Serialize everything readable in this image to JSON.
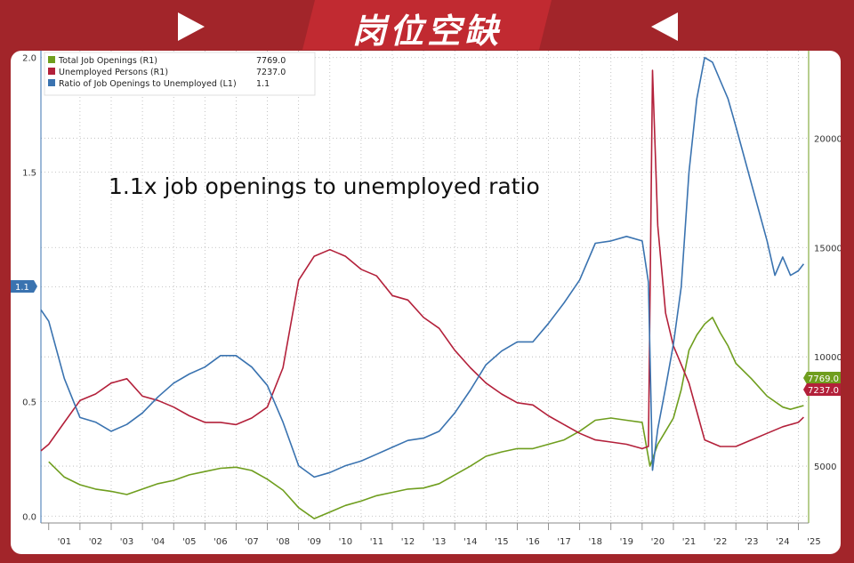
{
  "banner": {
    "title": "岗位空缺"
  },
  "annotation": "1.1x job openings to unemployed ratio",
  "legend": [
    {
      "label": "Total Job Openings (R1)",
      "value": "7769.0",
      "color": "#6f9e1e"
    },
    {
      "label": "Unemployed Persons (R1)",
      "value": "7237.0",
      "color": "#b3203a"
    },
    {
      "label": "Ratio of Job Openings to Unemployed (L1)",
      "value": "1.1",
      "color": "#3a73b0"
    }
  ],
  "value_flags": {
    "ratio": "1.1",
    "openings": "7769.0",
    "unemployed": "7237.0"
  },
  "chart_data": {
    "type": "line",
    "x_axis": {
      "range": [
        2000.75,
        2025.33
      ],
      "tick_labels": [
        "'01",
        "'02",
        "'03",
        "'04",
        "'05",
        "'06",
        "'07",
        "'08",
        "'09",
        "'10",
        "'11",
        "'12",
        "'13",
        "'14",
        "'15",
        "'16",
        "'17",
        "'18",
        "'19",
        "'20",
        "'21",
        "'22",
        "'23",
        "'24",
        "'25"
      ]
    },
    "y_left": {
      "range": [
        -0.03,
        2.03
      ],
      "ticks": [
        "0.0",
        "0.5",
        "1.0",
        "1.5",
        "2.0"
      ]
    },
    "y_right": {
      "range": [
        2400,
        24000
      ],
      "ticks": [
        "5000",
        "10000",
        "15000",
        "20000"
      ]
    },
    "grid": true,
    "legend_position": "top-left",
    "series": [
      {
        "name": "Total Job Openings (R1)",
        "axis": "right",
        "color": "#6f9e1e",
        "points": [
          [
            2001.0,
            5200
          ],
          [
            2001.5,
            4500
          ],
          [
            2002.0,
            4150
          ],
          [
            2002.5,
            3950
          ],
          [
            2003.0,
            3850
          ],
          [
            2003.5,
            3700
          ],
          [
            2004.0,
            3950
          ],
          [
            2004.5,
            4200
          ],
          [
            2005.0,
            4350
          ],
          [
            2005.5,
            4600
          ],
          [
            2006.0,
            4750
          ],
          [
            2006.5,
            4900
          ],
          [
            2007.0,
            4950
          ],
          [
            2007.5,
            4800
          ],
          [
            2008.0,
            4400
          ],
          [
            2008.5,
            3900
          ],
          [
            2009.0,
            3100
          ],
          [
            2009.5,
            2600
          ],
          [
            2010.0,
            2900
          ],
          [
            2010.5,
            3200
          ],
          [
            2011.0,
            3400
          ],
          [
            2011.5,
            3650
          ],
          [
            2012.0,
            3800
          ],
          [
            2012.5,
            3950
          ],
          [
            2013.0,
            4000
          ],
          [
            2013.5,
            4200
          ],
          [
            2014.0,
            4600
          ],
          [
            2014.5,
            5000
          ],
          [
            2015.0,
            5450
          ],
          [
            2015.5,
            5650
          ],
          [
            2016.0,
            5800
          ],
          [
            2016.5,
            5800
          ],
          [
            2017.0,
            6000
          ],
          [
            2017.5,
            6200
          ],
          [
            2018.0,
            6600
          ],
          [
            2018.5,
            7100
          ],
          [
            2019.0,
            7200
          ],
          [
            2019.5,
            7100
          ],
          [
            2020.0,
            7000
          ],
          [
            2020.25,
            5000
          ],
          [
            2020.5,
            6000
          ],
          [
            2020.75,
            6600
          ],
          [
            2021.0,
            7200
          ],
          [
            2021.25,
            8500
          ],
          [
            2021.5,
            10300
          ],
          [
            2021.75,
            11000
          ],
          [
            2022.0,
            11500
          ],
          [
            2022.25,
            11800
          ],
          [
            2022.5,
            11100
          ],
          [
            2022.75,
            10500
          ],
          [
            2023.0,
            9700
          ],
          [
            2023.5,
            9000
          ],
          [
            2024.0,
            8200
          ],
          [
            2024.5,
            7700
          ],
          [
            2024.75,
            7600
          ],
          [
            2025.0,
            7700
          ],
          [
            2025.17,
            7769
          ]
        ]
      },
      {
        "name": "Unemployed Persons (R1)",
        "axis": "right",
        "color": "#b3203a",
        "points": [
          [
            2000.75,
            5700
          ],
          [
            2001.0,
            6000
          ],
          [
            2001.5,
            7000
          ],
          [
            2002.0,
            8000
          ],
          [
            2002.5,
            8300
          ],
          [
            2003.0,
            8800
          ],
          [
            2003.5,
            9000
          ],
          [
            2004.0,
            8200
          ],
          [
            2004.5,
            8000
          ],
          [
            2005.0,
            7700
          ],
          [
            2005.5,
            7300
          ],
          [
            2006.0,
            7000
          ],
          [
            2006.5,
            7000
          ],
          [
            2007.0,
            6900
          ],
          [
            2007.5,
            7200
          ],
          [
            2008.0,
            7700
          ],
          [
            2008.5,
            9500
          ],
          [
            2009.0,
            13500
          ],
          [
            2009.5,
            14600
          ],
          [
            2010.0,
            14900
          ],
          [
            2010.5,
            14600
          ],
          [
            2011.0,
            14000
          ],
          [
            2011.5,
            13700
          ],
          [
            2012.0,
            12800
          ],
          [
            2012.5,
            12600
          ],
          [
            2013.0,
            11800
          ],
          [
            2013.5,
            11300
          ],
          [
            2014.0,
            10300
          ],
          [
            2014.5,
            9500
          ],
          [
            2015.0,
            8800
          ],
          [
            2015.5,
            8300
          ],
          [
            2016.0,
            7900
          ],
          [
            2016.5,
            7800
          ],
          [
            2017.0,
            7300
          ],
          [
            2017.5,
            6900
          ],
          [
            2018.0,
            6500
          ],
          [
            2018.5,
            6200
          ],
          [
            2019.0,
            6100
          ],
          [
            2019.5,
            6000
          ],
          [
            2020.0,
            5800
          ],
          [
            2020.2,
            5900
          ],
          [
            2020.33,
            23100
          ],
          [
            2020.5,
            16000
          ],
          [
            2020.75,
            12000
          ],
          [
            2021.0,
            10500
          ],
          [
            2021.5,
            8800
          ],
          [
            2021.75,
            7500
          ],
          [
            2022.0,
            6200
          ],
          [
            2022.5,
            5900
          ],
          [
            2023.0,
            5900
          ],
          [
            2023.5,
            6200
          ],
          [
            2024.0,
            6500
          ],
          [
            2024.5,
            6800
          ],
          [
            2025.0,
            7000
          ],
          [
            2025.17,
            7237
          ]
        ]
      },
      {
        "name": "Ratio of Job Openings to Unemployed (L1)",
        "axis": "left",
        "color": "#3a73b0",
        "points": [
          [
            2000.75,
            0.9
          ],
          [
            2001.0,
            0.85
          ],
          [
            2001.5,
            0.6
          ],
          [
            2002.0,
            0.43
          ],
          [
            2002.5,
            0.41
          ],
          [
            2003.0,
            0.37
          ],
          [
            2003.5,
            0.4
          ],
          [
            2004.0,
            0.45
          ],
          [
            2004.5,
            0.52
          ],
          [
            2005.0,
            0.58
          ],
          [
            2005.5,
            0.62
          ],
          [
            2006.0,
            0.65
          ],
          [
            2006.5,
            0.7
          ],
          [
            2007.0,
            0.7
          ],
          [
            2007.5,
            0.65
          ],
          [
            2008.0,
            0.57
          ],
          [
            2008.5,
            0.41
          ],
          [
            2009.0,
            0.22
          ],
          [
            2009.5,
            0.17
          ],
          [
            2010.0,
            0.19
          ],
          [
            2010.5,
            0.22
          ],
          [
            2011.0,
            0.24
          ],
          [
            2011.5,
            0.27
          ],
          [
            2012.0,
            0.3
          ],
          [
            2012.5,
            0.33
          ],
          [
            2013.0,
            0.34
          ],
          [
            2013.5,
            0.37
          ],
          [
            2014.0,
            0.45
          ],
          [
            2014.5,
            0.55
          ],
          [
            2015.0,
            0.66
          ],
          [
            2015.5,
            0.72
          ],
          [
            2016.0,
            0.76
          ],
          [
            2016.5,
            0.76
          ],
          [
            2017.0,
            0.84
          ],
          [
            2017.5,
            0.93
          ],
          [
            2018.0,
            1.03
          ],
          [
            2018.5,
            1.19
          ],
          [
            2019.0,
            1.2
          ],
          [
            2019.5,
            1.22
          ],
          [
            2020.0,
            1.2
          ],
          [
            2020.2,
            1.02
          ],
          [
            2020.33,
            0.2
          ],
          [
            2020.5,
            0.38
          ],
          [
            2020.75,
            0.56
          ],
          [
            2021.0,
            0.75
          ],
          [
            2021.25,
            1.0
          ],
          [
            2021.5,
            1.5
          ],
          [
            2021.75,
            1.82
          ],
          [
            2022.0,
            2.0
          ],
          [
            2022.25,
            1.98
          ],
          [
            2022.5,
            1.9
          ],
          [
            2022.75,
            1.82
          ],
          [
            2023.0,
            1.7
          ],
          [
            2023.5,
            1.45
          ],
          [
            2024.0,
            1.2
          ],
          [
            2024.25,
            1.05
          ],
          [
            2024.5,
            1.13
          ],
          [
            2024.75,
            1.05
          ],
          [
            2025.0,
            1.07
          ],
          [
            2025.17,
            1.1
          ]
        ]
      }
    ]
  }
}
